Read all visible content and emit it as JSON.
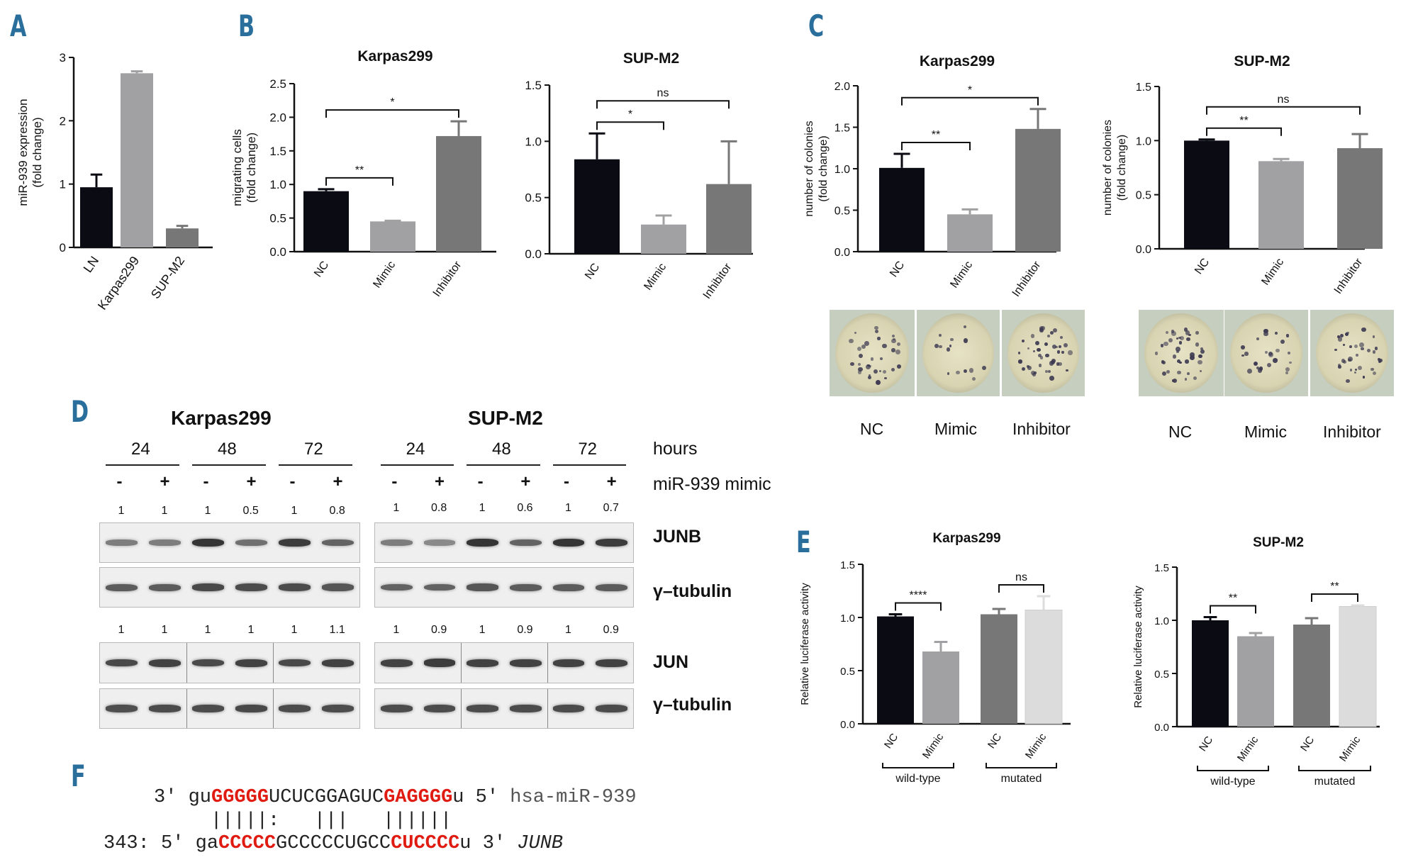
{
  "panel_labels": {
    "a": "A",
    "b": "B",
    "c": "C",
    "d": "D",
    "e": "E",
    "f": "F"
  },
  "chart_data": [
    {
      "id": "A",
      "type": "bar",
      "title": "",
      "ylabel_lines": [
        "miR-939 expression",
        "(fold change)"
      ],
      "categories": [
        "LN",
        "Karpas299",
        "SUP-M2"
      ],
      "values": [
        0.95,
        2.75,
        0.3
      ],
      "errors": [
        0.2,
        0.03,
        0.04
      ],
      "ylim": [
        0,
        3
      ],
      "yticks": [
        "0",
        "1",
        "2",
        "3"
      ],
      "colors": [
        "#0b0b14",
        "#a1a1a3",
        "#777777"
      ]
    },
    {
      "id": "B1",
      "type": "bar",
      "title": "Karpas299",
      "ylabel_lines": [
        "migrating cells",
        "(fold change)"
      ],
      "categories": [
        "NC",
        "Mimic",
        "Inhibitor"
      ],
      "values": [
        0.9,
        0.45,
        1.72
      ],
      "errors": [
        0.03,
        0.01,
        0.22
      ],
      "ylim": [
        0,
        2.5
      ],
      "yticks": [
        "0.0",
        "0.5",
        "1.0",
        "1.5",
        "2.0",
        "2.5"
      ],
      "colors": [
        "#0b0b14",
        "#a1a1a3",
        "#777777"
      ],
      "sig": [
        {
          "from": 0,
          "to": 1,
          "label": "**"
        },
        {
          "from": 0,
          "to": 2,
          "label": "*"
        }
      ]
    },
    {
      "id": "B2",
      "type": "bar",
      "title": "SUP-M2",
      "ylabel_lines": [],
      "categories": [
        "NC",
        "Mimic",
        "Inhibitor"
      ],
      "values": [
        0.84,
        0.26,
        0.62
      ],
      "errors": [
        0.23,
        0.08,
        0.38
      ],
      "ylim": [
        0,
        1.5
      ],
      "yticks": [
        "0.0",
        "0.5",
        "1.0",
        "1.5"
      ],
      "colors": [
        "#0b0b14",
        "#a1a1a3",
        "#777777"
      ],
      "sig": [
        {
          "from": 0,
          "to": 1,
          "label": "*"
        },
        {
          "from": 0,
          "to": 2,
          "label": "ns"
        }
      ]
    },
    {
      "id": "C1",
      "type": "bar",
      "title": "Karpas299",
      "ylabel_lines": [
        "number of colonies",
        "(fold change)"
      ],
      "categories": [
        "NC",
        "Mimic",
        "Inhibitor"
      ],
      "values": [
        1.01,
        0.45,
        1.48
      ],
      "errors": [
        0.17,
        0.06,
        0.24
      ],
      "ylim": [
        0,
        2
      ],
      "yticks": [
        "0.0",
        "0.5",
        "1.0",
        "1.5",
        "2.0"
      ],
      "colors": [
        "#0b0b14",
        "#a1a1a3",
        "#777777"
      ],
      "sig": [
        {
          "from": 0,
          "to": 1,
          "label": "**"
        },
        {
          "from": 0,
          "to": 2,
          "label": "*"
        }
      ]
    },
    {
      "id": "C2",
      "type": "bar",
      "title": "SUP-M2",
      "ylabel_lines": [
        "number of colonies",
        "(fold change)"
      ],
      "categories": [
        "NC",
        "Mimic",
        "Inhibitor"
      ],
      "values": [
        1.0,
        0.81,
        0.93
      ],
      "errors": [
        0.01,
        0.02,
        0.13
      ],
      "ylim": [
        0,
        1.5
      ],
      "yticks": [
        "0.0",
        "0.5",
        "1.0",
        "1.5"
      ],
      "colors": [
        "#0b0b14",
        "#a1a1a3",
        "#777777"
      ],
      "sig": [
        {
          "from": 0,
          "to": 1,
          "label": "**"
        },
        {
          "from": 0,
          "to": 2,
          "label": "ns"
        }
      ]
    },
    {
      "id": "E1",
      "type": "bar",
      "title": "Karpas299",
      "ylabel_lines": [
        "Relative luciferase activity"
      ],
      "categories": [
        "NC",
        "Mimic",
        "NC",
        "Mimic"
      ],
      "groups": [
        "wild-type",
        "mutated"
      ],
      "values": [
        1.01,
        0.68,
        1.03,
        1.07
      ],
      "errors": [
        0.02,
        0.09,
        0.05,
        0.13
      ],
      "ylim": [
        0,
        1.5
      ],
      "yticks": [
        "0.0",
        "0.5",
        "1.0",
        "1.5"
      ],
      "colors": [
        "#0b0b14",
        "#a1a1a3",
        "#777777",
        "#dcdcdc"
      ],
      "sig": [
        {
          "from": 0,
          "to": 1,
          "label": "****"
        },
        {
          "from": 2,
          "to": 3,
          "label": "ns"
        }
      ]
    },
    {
      "id": "E2",
      "type": "bar",
      "title": "SUP-M2",
      "ylabel_lines": [
        "Relative luciferase activity"
      ],
      "categories": [
        "NC",
        "Mimic",
        "NC",
        "Mimic"
      ],
      "groups": [
        "wild-type",
        "mutated"
      ],
      "values": [
        1.0,
        0.85,
        0.96,
        1.13
      ],
      "errors": [
        0.03,
        0.03,
        0.06,
        0.01
      ],
      "ylim": [
        0,
        1.5
      ],
      "yticks": [
        "0.0",
        "0.5",
        "1.0",
        "1.5"
      ],
      "colors": [
        "#0b0b14",
        "#a1a1a3",
        "#777777",
        "#dcdcdc"
      ],
      "sig": [
        {
          "from": 0,
          "to": 1,
          "label": "**"
        },
        {
          "from": 2,
          "to": 3,
          "label": "**"
        }
      ]
    }
  ],
  "colony_labels": {
    "nc": "NC",
    "mimic": "Mimic",
    "inhibitor": "Inhibitor"
  },
  "western": {
    "left_title": "Karpas299",
    "right_title": "SUP-M2",
    "hours_label": "hours",
    "mimic_label": "miR-939 mimic",
    "timepoints": [
      "24",
      "48",
      "72"
    ],
    "signs": [
      "-",
      "+",
      "-",
      "+",
      "-",
      "+"
    ],
    "junb_left": [
      "1",
      "1",
      "1",
      "0.5",
      "1",
      "0.8"
    ],
    "junb_right": [
      "1",
      "0.8",
      "1",
      "0.6",
      "1",
      "0.7"
    ],
    "jun_left": [
      "1",
      "1",
      "1",
      "1",
      "1",
      "1.1"
    ],
    "jun_right": [
      "1",
      "0.9",
      "1",
      "0.9",
      "1",
      "0.9"
    ],
    "row_labels": {
      "junb": "JUNB",
      "tubulin": "γ–tubulin",
      "jun": "JUN"
    }
  },
  "sequence": {
    "mir_prefix": "3′ gu",
    "mir_seed1": "GGGGG",
    "mir_mid": "UCUCGGAGUC",
    "mir_seed2": "GAGGGG",
    "mir_suffix": "u 5′ ",
    "mir_name": "hsa-miR-939",
    "pairing": "|||||:   |||   ||||||",
    "junb_prefix": "343: 5′ ga",
    "junb_site1": "CCCCC",
    "junb_mid": "GCCCCCUGCC",
    "junb_site2": "CUCCCC",
    "junb_suffix": "u 3′ ",
    "junb_name": "JUNB"
  }
}
